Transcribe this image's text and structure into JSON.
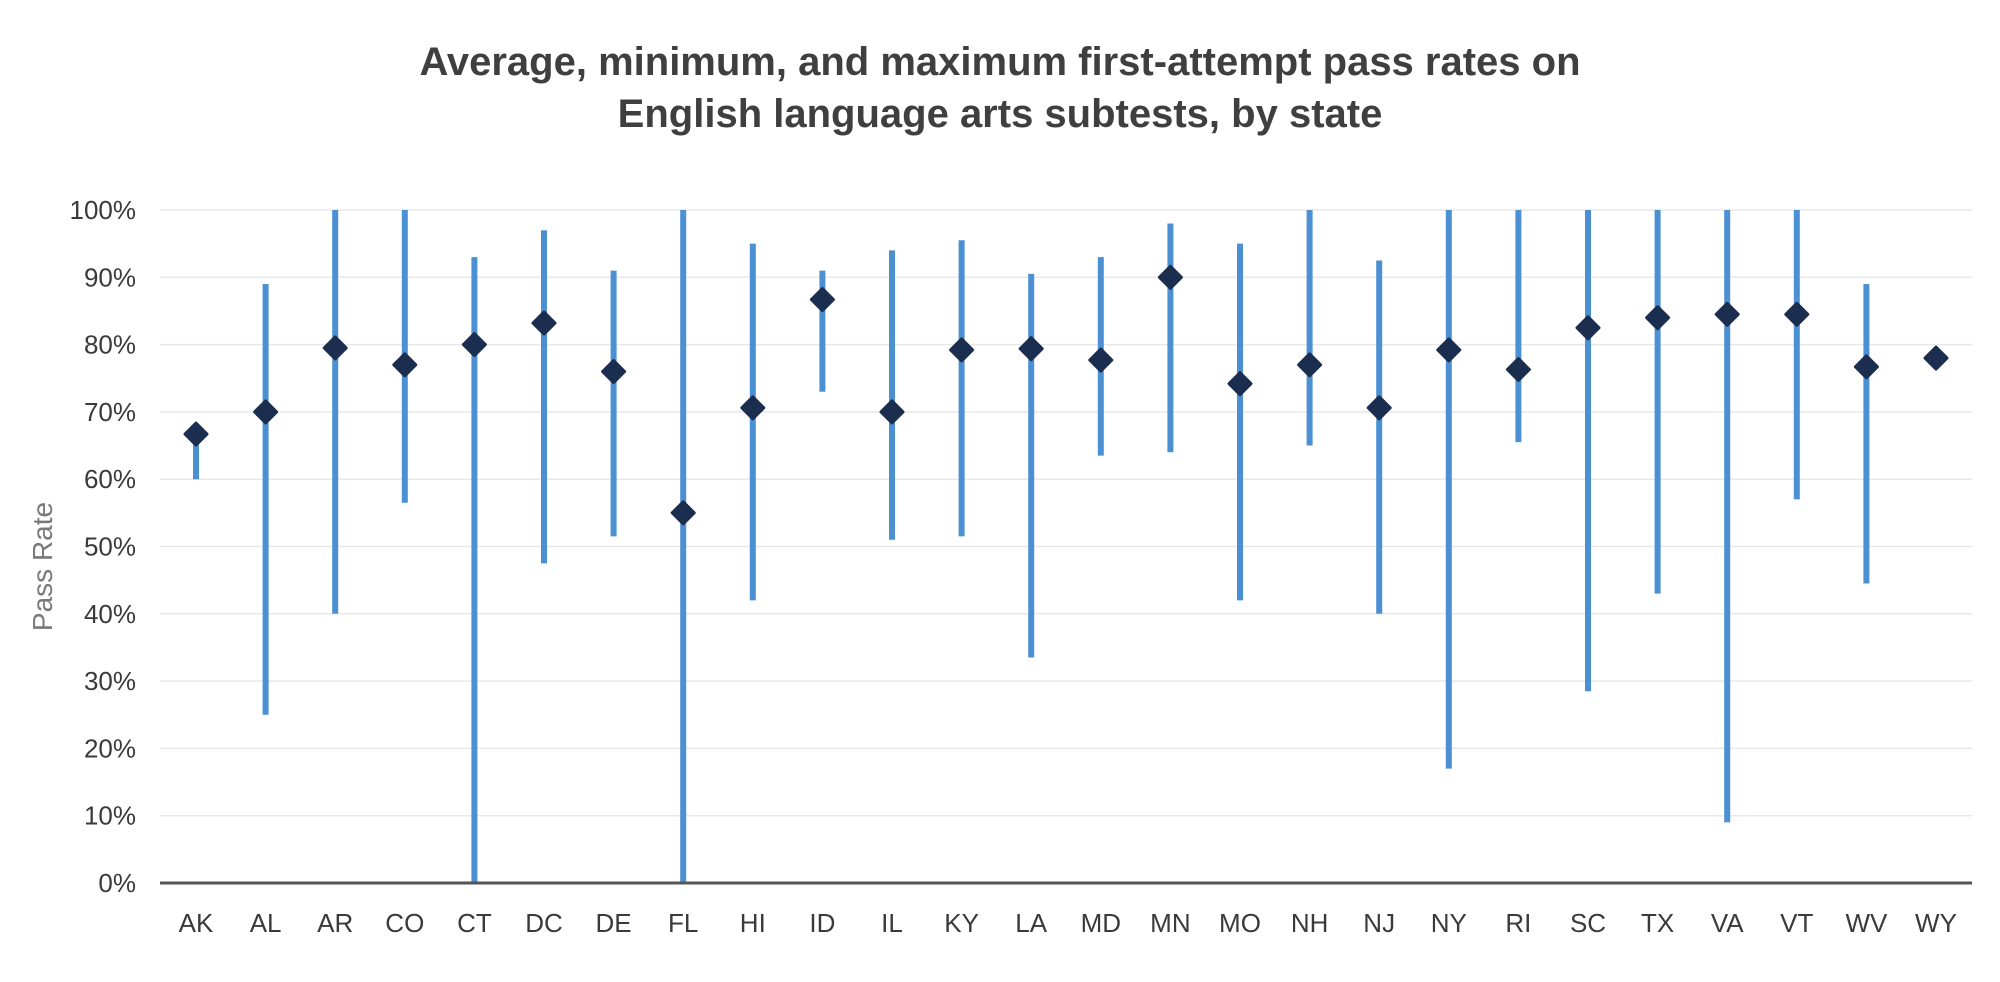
{
  "chart_data": {
    "type": "range",
    "title_lines": [
      "Average, minimum, and maximum first-attempt pass rates on",
      "English language arts subtests, by state"
    ],
    "xlabel": "",
    "ylabel": "Pass Rate",
    "ylim": [
      0,
      100
    ],
    "yticks": [
      "0%",
      "10%",
      "20%",
      "30%",
      "40%",
      "50%",
      "60%",
      "70%",
      "80%",
      "90%",
      "100%"
    ],
    "grid": true,
    "categories": [
      "AK",
      "AL",
      "AR",
      "CO",
      "CT",
      "DC",
      "DE",
      "FL",
      "HI",
      "ID",
      "IL",
      "KY",
      "LA",
      "MD",
      "MN",
      "MO",
      "NH",
      "NJ",
      "NY",
      "RI",
      "SC",
      "TX",
      "VA",
      "VT",
      "WV",
      "WY"
    ],
    "min": [
      60,
      25,
      40,
      56.5,
      0,
      47.5,
      51.5,
      0,
      42,
      73,
      51,
      51.5,
      33.5,
      63.5,
      64,
      42,
      65,
      40,
      17,
      65.5,
      28.5,
      43,
      9,
      57,
      44.5,
      78
    ],
    "average": [
      66.7,
      70,
      79.5,
      77,
      80,
      83.2,
      76,
      55,
      70.6,
      86.7,
      70,
      79.2,
      79.4,
      77.7,
      90,
      74.2,
      77,
      70.6,
      79.2,
      76.3,
      82.5,
      84,
      84.5,
      84.5,
      76.7,
      78
    ],
    "max": [
      67,
      89,
      100,
      100,
      93,
      97,
      91,
      100,
      95,
      91,
      94,
      95.5,
      90.5,
      93,
      98,
      95,
      100,
      92.5,
      100,
      100,
      100,
      100,
      100,
      100,
      89,
      78
    ],
    "colors": {
      "range_line": "#4a90d2",
      "average_marker": "#1c2e4f",
      "axis": "#555555",
      "grid": "#e8e8e8"
    }
  }
}
